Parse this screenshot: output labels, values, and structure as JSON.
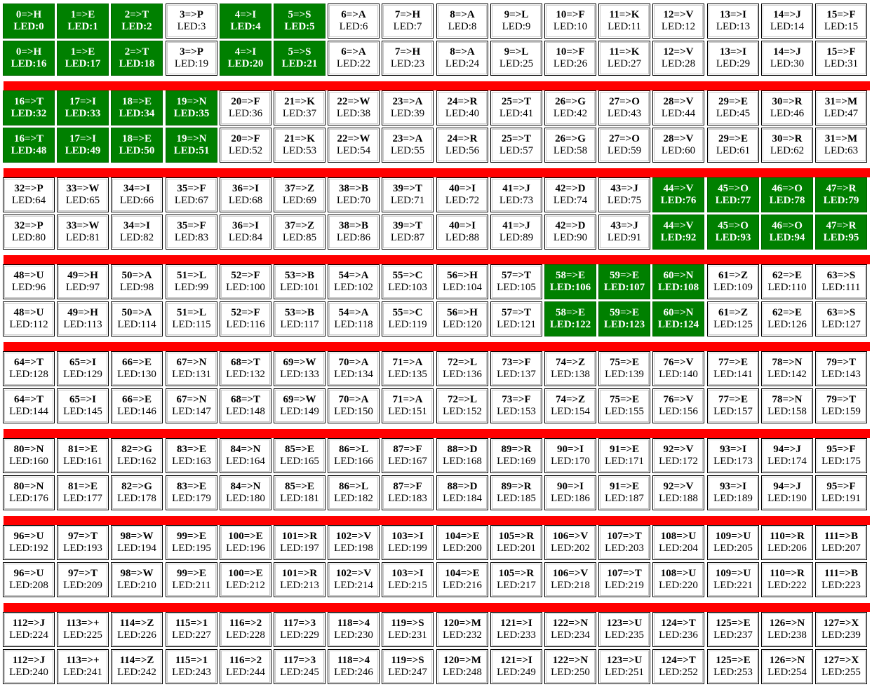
{
  "groups": [
    {
      "letters": [
        "H",
        "E",
        "T",
        "P",
        "I",
        "S",
        "A",
        "H",
        "A",
        "L",
        "F",
        "K",
        "V",
        "I",
        "J",
        "F"
      ],
      "lit": [
        0,
        1,
        2,
        4,
        5
      ]
    },
    {
      "letters": [
        "T",
        "I",
        "E",
        "N",
        "F",
        "K",
        "W",
        "A",
        "R",
        "T",
        "G",
        "O",
        "V",
        "E",
        "R",
        "M"
      ],
      "lit": [
        0,
        1,
        2,
        3
      ]
    },
    {
      "letters": [
        "P",
        "W",
        "I",
        "F",
        "I",
        "Z",
        "B",
        "T",
        "I",
        "J",
        "D",
        "J",
        "V",
        "O",
        "O",
        "R"
      ],
      "lit": [
        12,
        13,
        14,
        15
      ]
    },
    {
      "letters": [
        "U",
        "H",
        "A",
        "L",
        "F",
        "B",
        "A",
        "C",
        "H",
        "T",
        "E",
        "E",
        "N",
        "Z",
        "E",
        "S"
      ],
      "lit": [
        10,
        11,
        12
      ]
    },
    {
      "letters": [
        "T",
        "I",
        "E",
        "N",
        "T",
        "W",
        "A",
        "A",
        "L",
        "F",
        "Z",
        "E",
        "V",
        "E",
        "N",
        "T"
      ],
      "lit": []
    },
    {
      "letters": [
        "N",
        "E",
        "G",
        "E",
        "N",
        "E",
        "L",
        "F",
        "D",
        "R",
        "I",
        "E",
        "V",
        "I",
        "J",
        "F"
      ],
      "lit": []
    },
    {
      "letters": [
        "U",
        "T",
        "W",
        "E",
        "E",
        "R",
        "V",
        "I",
        "E",
        "R",
        "V",
        "T",
        "U",
        "U",
        "R",
        "B"
      ],
      "lit": []
    },
    {
      "letters": [
        "J",
        "+",
        "Z",
        "1",
        "2",
        "3",
        "4",
        "S",
        "M",
        "I",
        "N",
        "U",
        "T",
        "E",
        "N",
        "X"
      ],
      "lit": []
    }
  ],
  "cells": [],
  "colors": {
    "lit": "#008000",
    "unlit": "#ffffff",
    "separator": "#ff0000"
  }
}
